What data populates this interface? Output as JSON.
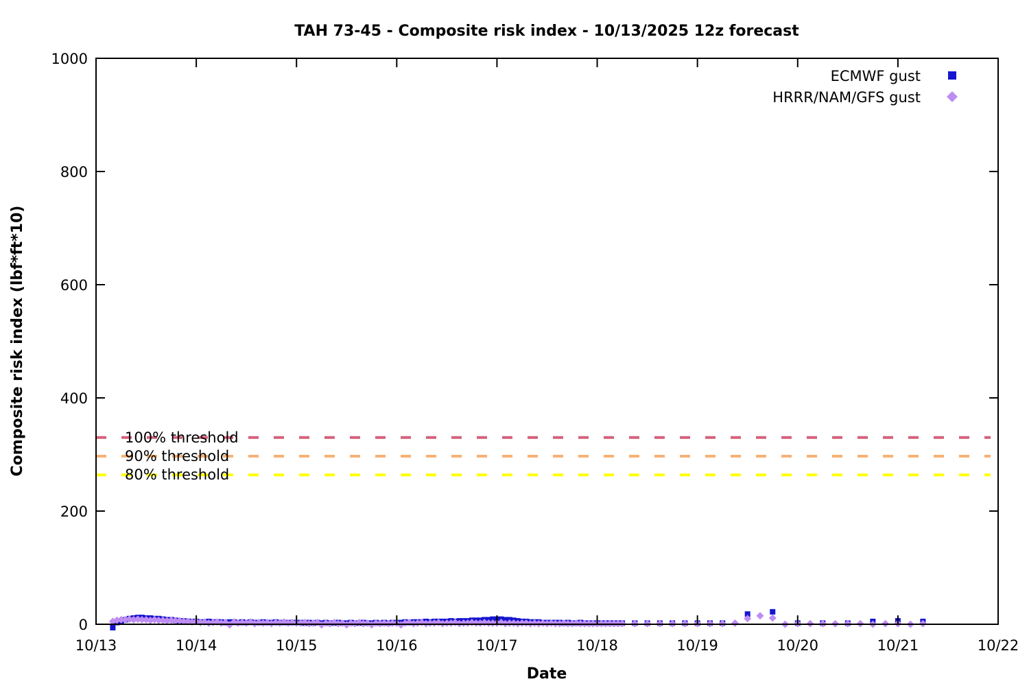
{
  "chart_data": {
    "type": "scatter",
    "title": "TAH 73-45 - Composite risk index - 10/13/2025 12z forecast",
    "xlabel": "Date",
    "ylabel": "Composite risk index (lbf*ft*10)",
    "xlim_days": [
      13,
      22
    ],
    "ylim": [
      0,
      1000
    ],
    "grid": false,
    "background": "#ffffff",
    "x_ticks": [
      {
        "t": 13,
        "label": "10/13"
      },
      {
        "t": 14,
        "label": "10/14"
      },
      {
        "t": 15,
        "label": "10/15"
      },
      {
        "t": 16,
        "label": "10/16"
      },
      {
        "t": 17,
        "label": "10/17"
      },
      {
        "t": 18,
        "label": "10/18"
      },
      {
        "t": 19,
        "label": "10/19"
      },
      {
        "t": 20,
        "label": "10/20"
      },
      {
        "t": 21,
        "label": "10/21"
      },
      {
        "t": 22,
        "label": "10/22"
      }
    ],
    "y_ticks": [
      {
        "v": 0,
        "label": "0"
      },
      {
        "v": 200,
        "label": "200"
      },
      {
        "v": 400,
        "label": "400"
      },
      {
        "v": 600,
        "label": "600"
      },
      {
        "v": 800,
        "label": "800"
      },
      {
        "v": 1000,
        "label": "1000"
      }
    ],
    "legend_position": "top-right-inside",
    "thresholds": [
      {
        "label": "100% threshold",
        "value": 330,
        "color": "#d5607a"
      },
      {
        "label": "90% threshold",
        "value": 297,
        "color": "#f6b175"
      },
      {
        "label": "80% threshold",
        "value": 264,
        "color": "#ffff00"
      }
    ],
    "series": [
      {
        "name": "ECMWF gust",
        "marker": "square",
        "color": "#1515d0",
        "points": [
          [
            13.167,
            -6
          ],
          [
            13.208,
            3
          ],
          [
            13.25,
            6
          ],
          [
            13.292,
            8
          ],
          [
            13.333,
            10
          ],
          [
            13.375,
            11
          ],
          [
            13.417,
            12
          ],
          [
            13.458,
            12
          ],
          [
            13.5,
            11
          ],
          [
            13.542,
            11
          ],
          [
            13.583,
            10
          ],
          [
            13.625,
            10
          ],
          [
            13.667,
            9
          ],
          [
            13.708,
            8
          ],
          [
            13.75,
            8
          ],
          [
            13.792,
            7
          ],
          [
            13.833,
            6
          ],
          [
            13.875,
            6
          ],
          [
            13.917,
            5
          ],
          [
            13.958,
            5
          ],
          [
            14,
            5
          ],
          [
            14.042,
            4
          ],
          [
            14.083,
            4
          ],
          [
            14.125,
            5
          ],
          [
            14.167,
            4
          ],
          [
            14.208,
            4
          ],
          [
            14.25,
            4
          ],
          [
            14.292,
            3
          ],
          [
            14.333,
            4
          ],
          [
            14.375,
            4
          ],
          [
            14.417,
            3
          ],
          [
            14.458,
            4
          ],
          [
            14.5,
            3
          ],
          [
            14.542,
            4
          ],
          [
            14.583,
            3
          ],
          [
            14.625,
            3
          ],
          [
            14.667,
            4
          ],
          [
            14.708,
            3
          ],
          [
            14.75,
            3
          ],
          [
            14.792,
            4
          ],
          [
            14.833,
            3
          ],
          [
            14.875,
            3
          ],
          [
            14.917,
            3
          ],
          [
            14.958,
            3
          ],
          [
            15,
            3
          ],
          [
            15.042,
            3
          ],
          [
            15.083,
            2
          ],
          [
            15.125,
            3
          ],
          [
            15.167,
            2
          ],
          [
            15.208,
            3
          ],
          [
            15.25,
            2
          ],
          [
            15.292,
            3
          ],
          [
            15.333,
            2
          ],
          [
            15.375,
            2
          ],
          [
            15.417,
            3
          ],
          [
            15.458,
            2
          ],
          [
            15.5,
            2
          ],
          [
            15.542,
            3
          ],
          [
            15.583,
            2
          ],
          [
            15.625,
            2
          ],
          [
            15.667,
            3
          ],
          [
            15.708,
            2
          ],
          [
            15.75,
            2
          ],
          [
            15.792,
            3
          ],
          [
            15.833,
            2
          ],
          [
            15.875,
            3
          ],
          [
            15.917,
            2
          ],
          [
            15.958,
            3
          ],
          [
            16,
            3
          ],
          [
            16.042,
            3
          ],
          [
            16.083,
            4
          ],
          [
            16.125,
            3
          ],
          [
            16.167,
            4
          ],
          [
            16.208,
            4
          ],
          [
            16.25,
            4
          ],
          [
            16.292,
            5
          ],
          [
            16.333,
            4
          ],
          [
            16.375,
            5
          ],
          [
            16.417,
            5
          ],
          [
            16.458,
            5
          ],
          [
            16.5,
            5
          ],
          [
            16.542,
            6
          ],
          [
            16.583,
            5
          ],
          [
            16.625,
            6
          ],
          [
            16.667,
            6
          ],
          [
            16.708,
            6
          ],
          [
            16.75,
            7
          ],
          [
            16.792,
            7
          ],
          [
            16.833,
            7
          ],
          [
            16.875,
            8
          ],
          [
            16.917,
            8
          ],
          [
            16.958,
            9
          ],
          [
            17,
            9
          ],
          [
            17.042,
            9
          ],
          [
            17.083,
            8
          ],
          [
            17.125,
            8
          ],
          [
            17.167,
            7
          ],
          [
            17.208,
            6
          ],
          [
            17.25,
            5
          ],
          [
            17.292,
            5
          ],
          [
            17.333,
            4
          ],
          [
            17.375,
            4
          ],
          [
            17.417,
            4
          ],
          [
            17.458,
            3
          ],
          [
            17.5,
            3
          ],
          [
            17.542,
            3
          ],
          [
            17.583,
            3
          ],
          [
            17.625,
            3
          ],
          [
            17.667,
            2
          ],
          [
            17.708,
            3
          ],
          [
            17.75,
            2
          ],
          [
            17.792,
            2
          ],
          [
            17.833,
            3
          ],
          [
            17.875,
            2
          ],
          [
            17.917,
            2
          ],
          [
            17.958,
            2
          ],
          [
            18,
            2
          ],
          [
            18.042,
            2
          ],
          [
            18.083,
            2
          ],
          [
            18.125,
            2
          ],
          [
            18.167,
            2
          ],
          [
            18.208,
            2
          ],
          [
            18.25,
            2
          ],
          [
            18.375,
            2
          ],
          [
            18.5,
            2
          ],
          [
            18.625,
            2
          ],
          [
            18.75,
            2
          ],
          [
            18.875,
            2
          ],
          [
            19,
            2
          ],
          [
            19.125,
            2
          ],
          [
            19.25,
            2
          ],
          [
            19.5,
            18
          ],
          [
            19.75,
            22
          ],
          [
            20,
            2
          ],
          [
            20.25,
            2
          ],
          [
            20.5,
            2
          ],
          [
            20.75,
            5
          ],
          [
            21,
            6
          ],
          [
            21.25,
            5
          ]
        ]
      },
      {
        "name": "HRRR/NAM/GFS gust",
        "marker": "diamond",
        "color": "#be8df2",
        "points": [
          [
            13.167,
            5
          ],
          [
            13.208,
            7
          ],
          [
            13.25,
            8
          ],
          [
            13.292,
            8
          ],
          [
            13.333,
            9
          ],
          [
            13.375,
            8
          ],
          [
            13.417,
            9
          ],
          [
            13.458,
            8
          ],
          [
            13.5,
            8
          ],
          [
            13.542,
            7
          ],
          [
            13.583,
            8
          ],
          [
            13.625,
            7
          ],
          [
            13.667,
            7
          ],
          [
            13.708,
            6
          ],
          [
            13.75,
            7
          ],
          [
            13.792,
            6
          ],
          [
            13.833,
            6
          ],
          [
            13.875,
            5
          ],
          [
            13.917,
            5
          ],
          [
            13.958,
            4
          ],
          [
            14,
            5
          ],
          [
            14.042,
            3
          ],
          [
            14.083,
            4
          ],
          [
            14.125,
            2
          ],
          [
            14.167,
            3
          ],
          [
            14.208,
            4
          ],
          [
            14.25,
            2
          ],
          [
            14.292,
            3
          ],
          [
            14.333,
            -1
          ],
          [
            14.375,
            4
          ],
          [
            14.417,
            2
          ],
          [
            14.458,
            3
          ],
          [
            14.5,
            2
          ],
          [
            14.542,
            4
          ],
          [
            14.583,
            1
          ],
          [
            14.625,
            3
          ],
          [
            14.667,
            2
          ],
          [
            14.708,
            3
          ],
          [
            14.75,
            1
          ],
          [
            14.792,
            3
          ],
          [
            14.833,
            2
          ],
          [
            14.875,
            4
          ],
          [
            14.917,
            2
          ],
          [
            14.958,
            3
          ],
          [
            15,
            2
          ],
          [
            15.042,
            2
          ],
          [
            15.083,
            3
          ],
          [
            15.125,
            1
          ],
          [
            15.167,
            2
          ],
          [
            15.208,
            3
          ],
          [
            15.25,
            -1
          ],
          [
            15.292,
            2
          ],
          [
            15.333,
            1
          ],
          [
            15.375,
            3
          ],
          [
            15.417,
            1
          ],
          [
            15.458,
            2
          ],
          [
            15.5,
            -1
          ],
          [
            15.542,
            2
          ],
          [
            15.583,
            1
          ],
          [
            15.625,
            3
          ],
          [
            15.667,
            1
          ],
          [
            15.708,
            2
          ],
          [
            15.75,
            -1
          ],
          [
            15.792,
            2
          ],
          [
            15.833,
            1
          ],
          [
            15.875,
            2
          ],
          [
            15.917,
            1
          ],
          [
            15.958,
            2
          ],
          [
            16,
            2
          ],
          [
            16.042,
            -1
          ],
          [
            16.083,
            2
          ],
          [
            16.125,
            3
          ],
          [
            16.167,
            1
          ],
          [
            16.208,
            2
          ],
          [
            16.25,
            3
          ],
          [
            16.292,
            1
          ],
          [
            16.333,
            2
          ],
          [
            16.375,
            2
          ],
          [
            16.417,
            3
          ],
          [
            16.458,
            1
          ],
          [
            16.5,
            2
          ],
          [
            16.542,
            2
          ],
          [
            16.583,
            3
          ],
          [
            16.625,
            1
          ],
          [
            16.667,
            2
          ],
          [
            16.708,
            2
          ],
          [
            16.75,
            3
          ],
          [
            16.792,
            2
          ],
          [
            16.833,
            2
          ],
          [
            16.875,
            3
          ],
          [
            16.917,
            2
          ],
          [
            16.958,
            2
          ],
          [
            17,
            2
          ],
          [
            17.042,
            3
          ],
          [
            17.083,
            1
          ],
          [
            17.125,
            2
          ],
          [
            17.167,
            2
          ],
          [
            17.208,
            1
          ],
          [
            17.25,
            2
          ],
          [
            17.292,
            2
          ],
          [
            17.333,
            1
          ],
          [
            17.375,
            2
          ],
          [
            17.417,
            1
          ],
          [
            17.458,
            2
          ],
          [
            17.5,
            1
          ],
          [
            17.542,
            2
          ],
          [
            17.583,
            1
          ],
          [
            17.625,
            1
          ],
          [
            17.667,
            2
          ],
          [
            17.708,
            1
          ],
          [
            17.75,
            1
          ],
          [
            17.792,
            2
          ],
          [
            17.833,
            1
          ],
          [
            17.875,
            1
          ],
          [
            17.917,
            1
          ],
          [
            17.958,
            1
          ],
          [
            18,
            1
          ],
          [
            18.042,
            1
          ],
          [
            18.083,
            1
          ],
          [
            18.125,
            1
          ],
          [
            18.167,
            1
          ],
          [
            18.208,
            1
          ],
          [
            18.25,
            1
          ],
          [
            18.375,
            1
          ],
          [
            18.5,
            1
          ],
          [
            18.625,
            1
          ],
          [
            18.75,
            1
          ],
          [
            18.875,
            1
          ],
          [
            19,
            1
          ],
          [
            19.125,
            1
          ],
          [
            19.25,
            1
          ],
          [
            19.375,
            2
          ],
          [
            19.5,
            10
          ],
          [
            19.625,
            15
          ],
          [
            19.75,
            11
          ],
          [
            19.875,
            0
          ],
          [
            20,
            1
          ],
          [
            20.125,
            1
          ],
          [
            20.25,
            1
          ],
          [
            20.375,
            1
          ],
          [
            20.5,
            1
          ],
          [
            20.625,
            1
          ],
          [
            20.75,
            0
          ],
          [
            20.875,
            1
          ],
          [
            21,
            1
          ],
          [
            21.125,
            0
          ],
          [
            21.25,
            1
          ]
        ]
      }
    ]
  }
}
